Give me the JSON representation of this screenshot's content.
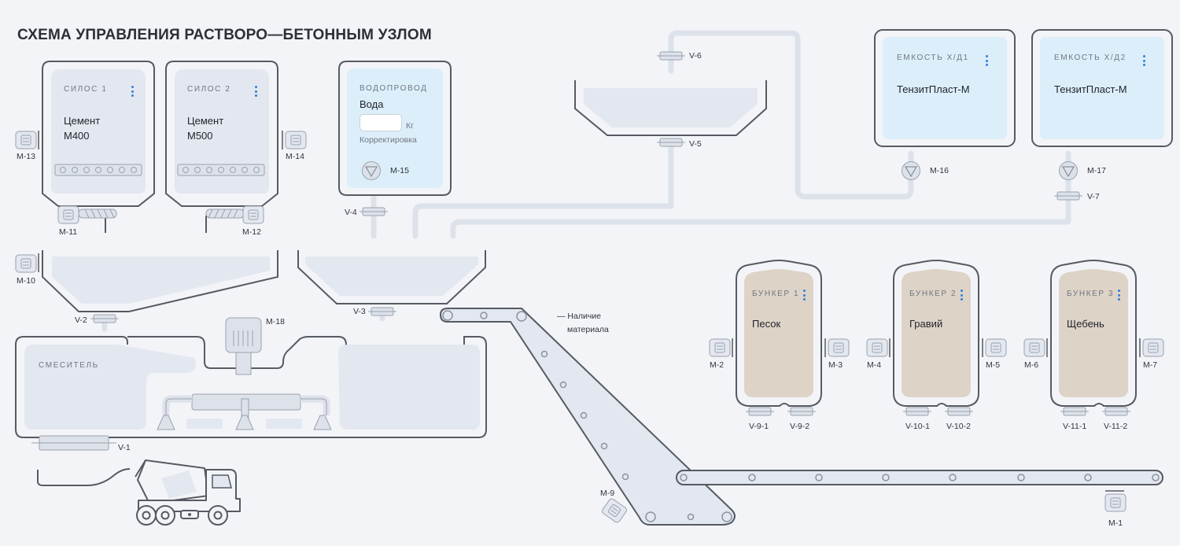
{
  "title": "СХЕМА УПРАВЛЕНИЯ РАСТВОРО—БЕТОННЫМ УЗЛОМ",
  "silos": [
    {
      "caption": "СИЛОС 1",
      "line1": "Цемент",
      "line2": "М400"
    },
    {
      "caption": "СИЛОС 2",
      "line1": "Цемент",
      "line2": "М500"
    }
  ],
  "water": {
    "caption": "ВОДОПРОВОД",
    "name": "Вода",
    "value": "",
    "unit": "Кг",
    "correction": "Корректировка"
  },
  "tanks": [
    {
      "caption": "ЕМКОСТЬ Х/Д1",
      "name": "ТензитПласт-М"
    },
    {
      "caption": "ЕМКОСТЬ Х/Д2",
      "name": "ТензитПласт-М"
    }
  ],
  "bunkers": [
    {
      "caption": "БУНКЕР 1",
      "name": "Песок"
    },
    {
      "caption": "БУНКЕР 2",
      "name": "Гравий"
    },
    {
      "caption": "БУНКЕР 3",
      "name": "Щебень"
    }
  ],
  "mixer": {
    "caption": "СМЕСИТЕЛЬ"
  },
  "sensor_label": [
    "— Наличие",
    "материала"
  ],
  "motors": {
    "m1": "M-1",
    "m2": "M-2",
    "m3": "M-3",
    "m4": "M-4",
    "m5": "M-5",
    "m6": "M-6",
    "m7": "M-7",
    "m9": "M-9",
    "m10": "M-10",
    "m11": "M-11",
    "m12": "M-12",
    "m13": "M-13",
    "m14": "M-14",
    "m15": "M-15",
    "m16": "M-16",
    "m17": "M-17",
    "m18": "M-18"
  },
  "valves": {
    "v1": "V-1",
    "v2": "V-2",
    "v3": "V-3",
    "v4": "V-4",
    "v5": "V-5",
    "v6": "V-6",
    "v7": "V-7",
    "v9_1": "V-9-1",
    "v9_2": "V-9-2",
    "v10_1": "V-10-1",
    "v10_2": "V-10-2",
    "v11_1": "V-11-1",
    "v11_2": "V-11-2"
  },
  "colors": {
    "outline": "#555b63",
    "panel": "#e3e7ef",
    "water_panel": "#dceefa",
    "bunker_fill": "#ddd3c7",
    "pipe": "#dde2ea",
    "accent": "#2f7fd7"
  }
}
